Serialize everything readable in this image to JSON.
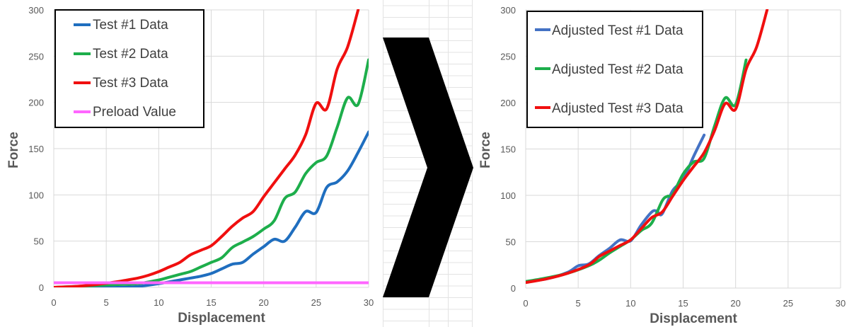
{
  "colors": {
    "test1": "#1F6EBF",
    "test2": "#1DAE4B",
    "test3": "#F00F0F",
    "preload": "#FF66FF",
    "adj1": "#4472C4",
    "grid": "#D9D9D9",
    "arrow": "#000000"
  },
  "chart_data": [
    {
      "type": "line",
      "title": "",
      "xlabel": "Displacement",
      "ylabel": "Force",
      "xlim": [
        0,
        30
      ],
      "ylim": [
        0,
        300
      ],
      "xticks": [
        "0",
        "5",
        "10",
        "15",
        "20",
        "25",
        "30"
      ],
      "yticks": [
        "0",
        "50",
        "100",
        "150",
        "200",
        "250",
        "300"
      ],
      "grid": true,
      "legend_position": "top-left",
      "series": [
        {
          "name": "Test #1 Data",
          "color_key": "test1",
          "x": [
            0,
            2,
            4,
            6,
            8,
            10,
            11,
            12,
            13,
            14,
            15,
            16,
            17,
            18,
            19,
            20,
            21,
            22,
            23,
            24,
            25,
            26,
            27,
            28,
            29,
            30
          ],
          "y": [
            0,
            0,
            0,
            0,
            1,
            4,
            6,
            8,
            10,
            12,
            15,
            20,
            25,
            27,
            36,
            44,
            52,
            50,
            65,
            82,
            81,
            108,
            114,
            126,
            146,
            168
          ]
        },
        {
          "name": "Test #2 Data",
          "color_key": "test2",
          "x": [
            0,
            2,
            4,
            6,
            8,
            10,
            11,
            12,
            13,
            14,
            15,
            16,
            17,
            18,
            19,
            20,
            21,
            22,
            23,
            24,
            25,
            26,
            27,
            28,
            29,
            30
          ],
          "y": [
            0,
            1,
            2,
            3,
            4,
            8,
            11,
            14,
            17,
            22,
            27,
            32,
            43,
            49,
            55,
            63,
            72,
            96,
            103,
            123,
            135,
            142,
            173,
            205,
            198,
            246
          ]
        },
        {
          "name": "Test #3 Data",
          "color_key": "test3",
          "x": [
            0,
            2,
            4,
            6,
            7,
            8,
            9,
            10,
            11,
            12,
            13,
            14,
            15,
            16,
            17,
            18,
            19,
            20,
            21,
            22,
            23,
            24,
            25,
            26,
            27,
            28,
            29
          ],
          "y": [
            0,
            1,
            3,
            6,
            8,
            10,
            13,
            17,
            22,
            27,
            35,
            40,
            45,
            55,
            66,
            75,
            82,
            98,
            113,
            128,
            143,
            165,
            199,
            193,
            236,
            260,
            300
          ]
        },
        {
          "name": "Preload Value",
          "color_key": "preload",
          "x": [
            0,
            30
          ],
          "y": [
            5,
            5
          ]
        }
      ]
    },
    {
      "type": "line",
      "title": "",
      "xlabel": "Displacement",
      "ylabel": "Force",
      "xlim": [
        0,
        30
      ],
      "ylim": [
        0,
        300
      ],
      "xticks": [
        "0",
        "5",
        "10",
        "15",
        "20",
        "25",
        "30"
      ],
      "yticks": [
        "0",
        "50",
        "100",
        "150",
        "200",
        "250",
        "300"
      ],
      "grid": true,
      "legend_position": "top-left",
      "series": [
        {
          "name": "Adjusted Test #1 Data",
          "color_key": "adj1",
          "x": [
            0,
            2,
            4,
            5,
            6,
            7,
            8,
            9,
            10,
            11,
            12,
            12.5,
            13,
            14,
            15,
            16,
            17
          ],
          "y": [
            7,
            10,
            17,
            24,
            26,
            35,
            43,
            52,
            51,
            68,
            82,
            83,
            80,
            105,
            117,
            142,
            165
          ]
        },
        {
          "name": "Adjusted Test #2 Data",
          "color_key": "test2",
          "x": [
            0,
            2,
            4,
            6,
            7,
            8,
            9,
            10,
            11,
            12,
            13,
            13.5,
            14,
            15,
            16,
            17,
            18,
            19,
            20,
            21
          ],
          "y": [
            7,
            11,
            16,
            24,
            30,
            38,
            45,
            52,
            62,
            70,
            94,
            99,
            101,
            123,
            136,
            140,
            175,
            205,
            198,
            246
          ]
        },
        {
          "name": "Adjusted Test #3 Data",
          "color_key": "test3",
          "x": [
            0,
            2,
            4,
            6,
            7,
            8,
            9,
            10,
            11,
            12,
            13,
            14,
            15,
            16,
            17,
            18,
            19,
            20,
            21,
            22,
            23
          ],
          "y": [
            6,
            10,
            16,
            25,
            34,
            40,
            46,
            52,
            64,
            76,
            82,
            99,
            116,
            131,
            146,
            170,
            199,
            193,
            236,
            260,
            300
          ]
        }
      ]
    }
  ]
}
